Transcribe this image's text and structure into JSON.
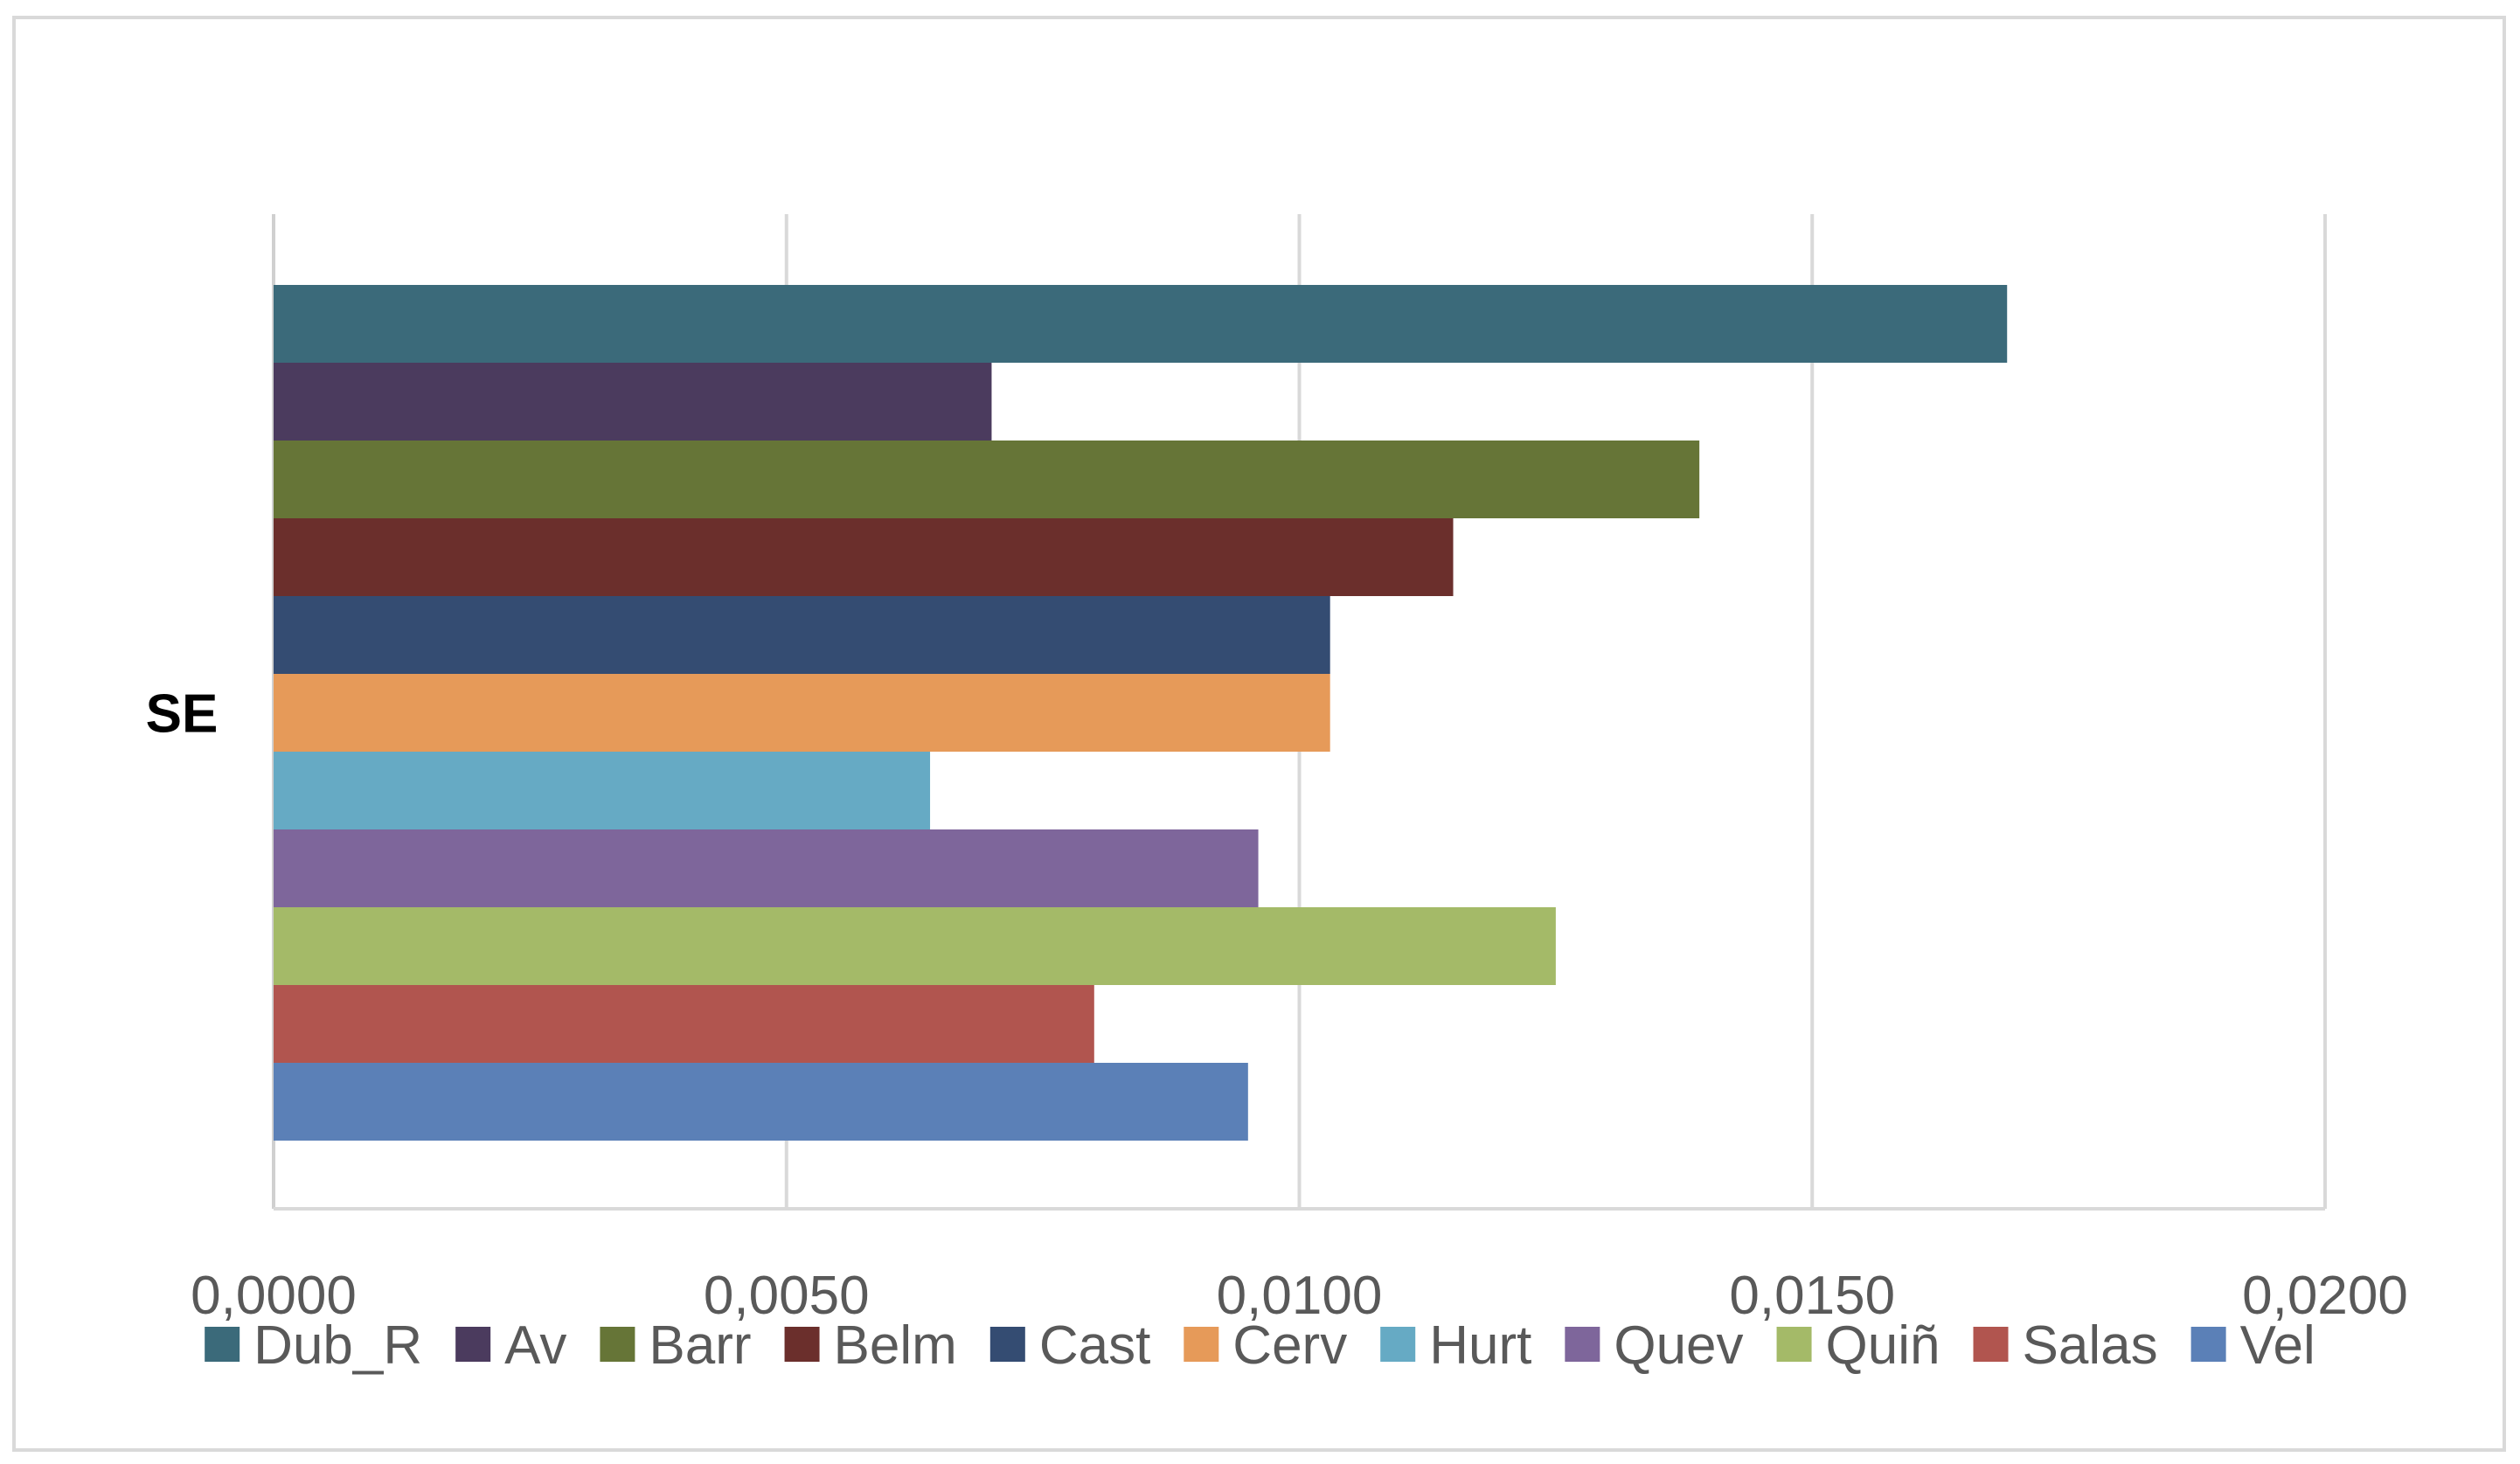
{
  "chart_data": {
    "type": "bar",
    "orientation": "horizontal",
    "categories": [
      "SE"
    ],
    "series": [
      {
        "name": "Dub_R",
        "values": [
          0.0169
        ],
        "color": "#3b6a7a"
      },
      {
        "name": "Av",
        "values": [
          0.007
        ],
        "color": "#4b3b5e"
      },
      {
        "name": "Barr",
        "values": [
          0.0139
        ],
        "color": "#667537"
      },
      {
        "name": "Belm",
        "values": [
          0.0115
        ],
        "color": "#6b2f2c"
      },
      {
        "name": "Cast",
        "values": [
          0.0103
        ],
        "color": "#344c72"
      },
      {
        "name": "Cerv",
        "values": [
          0.0103
        ],
        "color": "#e69a59"
      },
      {
        "name": "Hurt",
        "values": [
          0.0064
        ],
        "color": "#66aac4"
      },
      {
        "name": "Quev",
        "values": [
          0.0096
        ],
        "color": "#7e669b"
      },
      {
        "name": "Quiñ",
        "values": [
          0.0125
        ],
        "color": "#a4ba68"
      },
      {
        "name": "Salas",
        "values": [
          0.008
        ],
        "color": "#b1554f"
      },
      {
        "name": "Vel",
        "values": [
          0.0095
        ],
        "color": "#5b80b7"
      }
    ],
    "xlim": [
      0,
      0.02
    ],
    "x_ticks": [
      0,
      0.005,
      0.01,
      0.015,
      0.02
    ],
    "x_tick_labels": [
      "0,0000",
      "0,0050",
      "0,0100",
      "0,0150",
      "0,0200"
    ],
    "title": "",
    "xlabel": "",
    "ylabel": "",
    "grid": true,
    "legend_position": "bottom"
  }
}
